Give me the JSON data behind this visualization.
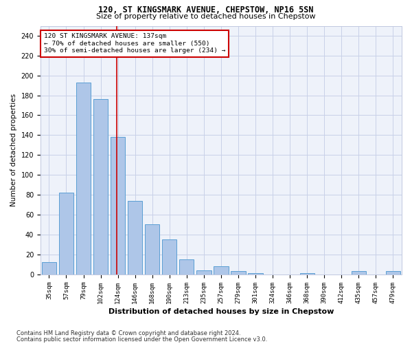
{
  "title1": "120, ST KINGSMARK AVENUE, CHEPSTOW, NP16 5SN",
  "title2": "Size of property relative to detached houses in Chepstow",
  "xlabel": "Distribution of detached houses by size in Chepstow",
  "ylabel": "Number of detached properties",
  "categories": [
    "35sqm",
    "57sqm",
    "79sqm",
    "102sqm",
    "124sqm",
    "146sqm",
    "168sqm",
    "190sqm",
    "213sqm",
    "235sqm",
    "257sqm",
    "279sqm",
    "301sqm",
    "324sqm",
    "346sqm",
    "368sqm",
    "390sqm",
    "412sqm",
    "435sqm",
    "457sqm",
    "479sqm"
  ],
  "values": [
    12,
    82,
    193,
    176,
    138,
    74,
    50,
    35,
    15,
    4,
    8,
    3,
    1,
    0,
    0,
    1,
    0,
    0,
    3,
    0,
    3
  ],
  "bar_color": "#aec6e8",
  "bar_edge_color": "#5a9fd4",
  "annotation_box_text": "120 ST KINGSMARK AVENUE: 137sqm\n← 70% of detached houses are smaller (550)\n30% of semi-detached houses are larger (234) →",
  "annotation_box_color": "#ffffff",
  "annotation_box_edge_color": "#cc0000",
  "vline_color": "#cc0000",
  "vline_x": 3.95,
  "footer1": "Contains HM Land Registry data © Crown copyright and database right 2024.",
  "footer2": "Contains public sector information licensed under the Open Government Licence v3.0.",
  "background_color": "#eef2fa",
  "grid_color": "#c8d0e8",
  "ylim": [
    0,
    250
  ],
  "yticks": [
    0,
    20,
    40,
    60,
    80,
    100,
    120,
    140,
    160,
    180,
    200,
    220,
    240
  ]
}
